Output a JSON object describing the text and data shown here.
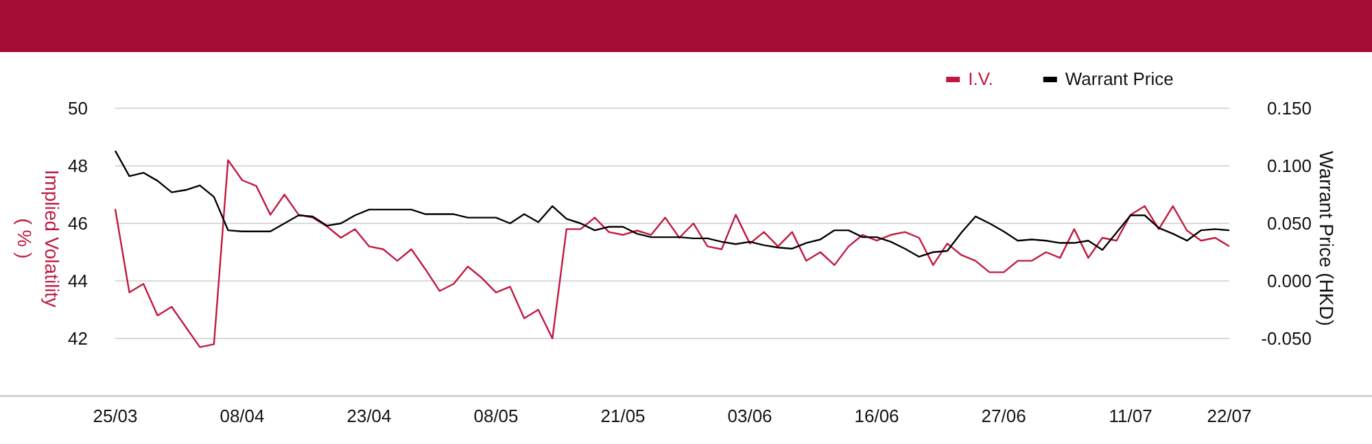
{
  "chart_data": {
    "type": "line",
    "ylabel": "Implied Volatility\n( % )",
    "y2label": "Warrant Price (HKD)",
    "categories": [
      "25/03",
      null,
      null,
      null,
      null,
      null,
      null,
      null,
      null,
      "08/04",
      null,
      null,
      null,
      null,
      null,
      null,
      null,
      null,
      "23/04",
      null,
      null,
      null,
      null,
      null,
      null,
      null,
      null,
      "08/05",
      null,
      null,
      null,
      null,
      null,
      null,
      null,
      null,
      "21/05",
      null,
      null,
      null,
      null,
      null,
      null,
      null,
      null,
      "03/06",
      null,
      null,
      null,
      null,
      null,
      null,
      null,
      null,
      "16/06",
      null,
      null,
      null,
      null,
      null,
      null,
      null,
      null,
      "27/06",
      null,
      null,
      null,
      null,
      null,
      null,
      null,
      null,
      "11/07",
      null,
      null,
      null,
      null,
      null,
      null,
      "22/07"
    ],
    "series": [
      {
        "name": "I.V.",
        "color": "#c0183f",
        "values": [
          46.5,
          43.6,
          43.9,
          42.8,
          43.1,
          42.4,
          41.7,
          41.8,
          48.2,
          47.5,
          47.3,
          46.3,
          47.0,
          46.3,
          46.2,
          45.9,
          45.5,
          45.8,
          45.2,
          45.1,
          44.7,
          45.1,
          44.4,
          43.65,
          43.9,
          44.5,
          44.1,
          43.6,
          43.8,
          42.7,
          43.0,
          42.0,
          45.8,
          45.8,
          46.2,
          45.7,
          45.6,
          45.75,
          45.6,
          46.2,
          45.5,
          46.0,
          45.2,
          45.1,
          46.3,
          45.3,
          45.7,
          45.2,
          45.7,
          44.7,
          45.0,
          44.55,
          45.2,
          45.6,
          45.4,
          45.6,
          45.7,
          45.5,
          44.55,
          45.3,
          44.9,
          44.7,
          44.3,
          44.3,
          44.7,
          44.7,
          45.0,
          44.8,
          45.8,
          44.8,
          45.5,
          45.4,
          46.3,
          46.6,
          45.8,
          46.6,
          45.75,
          45.4,
          45.5,
          45.2
        ]
      },
      {
        "name": "Warrant Price",
        "color": "#000000",
        "axis": "y2",
        "values": [
          0.113,
          0.091,
          0.094,
          0.087,
          0.077,
          0.079,
          0.083,
          0.073,
          0.044,
          0.043,
          0.043,
          0.043,
          0.05,
          0.057,
          0.056,
          0.048,
          0.05,
          0.057,
          0.062,
          0.062,
          0.062,
          0.062,
          0.058,
          0.058,
          0.058,
          0.055,
          0.055,
          0.055,
          0.05,
          0.058,
          0.051,
          0.065,
          0.054,
          0.05,
          0.044,
          0.047,
          0.047,
          0.041,
          0.038,
          0.038,
          0.038,
          0.037,
          0.037,
          0.034,
          0.032,
          0.034,
          0.031,
          0.029,
          0.028,
          0.033,
          0.036,
          0.044,
          0.044,
          0.038,
          0.038,
          0.034,
          0.028,
          0.021,
          0.025,
          0.026,
          0.042,
          0.056,
          0.05,
          0.043,
          0.035,
          0.036,
          0.035,
          0.033,
          0.033,
          0.035,
          0.027,
          0.042,
          0.057,
          0.057,
          0.046,
          0.041,
          0.035,
          0.044,
          0.045,
          0.044
        ]
      }
    ],
    "ylim": [
      40,
      50
    ],
    "yticks": [
      42,
      44,
      46,
      48,
      50
    ],
    "y2lim": [
      -0.1,
      0.15
    ],
    "y2ticks": [
      {
        "value": -0.05,
        "label": "-0.050"
      },
      {
        "value": 0,
        "label": "0.000"
      },
      {
        "value": 0.05,
        "label": "0.050"
      },
      {
        "value": 0.1,
        "label": "0.100"
      },
      {
        "value": 0.15,
        "label": "0.150"
      }
    ],
    "grid": "y",
    "legend": "top right"
  }
}
